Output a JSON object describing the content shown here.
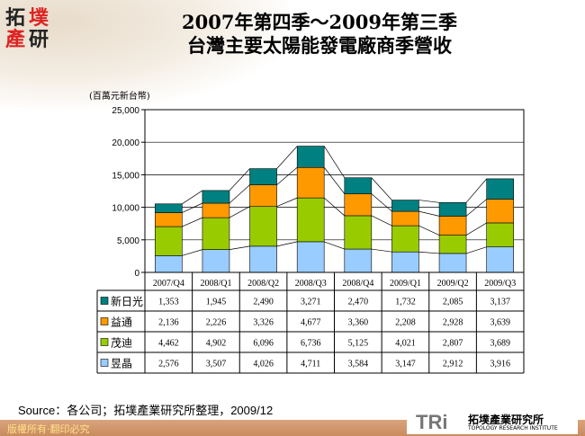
{
  "header": {
    "logo_text": "拓墣產研",
    "title_line1": "2007年第四季～2009年第三季",
    "title_line2": "台灣主要太陽能發電廠商季營收"
  },
  "chart_data": {
    "type": "bar",
    "stacked": true,
    "ylabel": "(百萬元新台幣)",
    "ylim": [
      0,
      25000
    ],
    "yticks": [
      "0",
      "5,000",
      "10,000",
      "15,000",
      "20,000",
      "25,000"
    ],
    "categories": [
      "2007/Q4",
      "2008/Q1",
      "2008/Q2",
      "2008/Q3",
      "2008/Q4",
      "2009/Q1",
      "2009/Q2",
      "2009/Q3"
    ],
    "series": [
      {
        "name": "昱晶",
        "color": "#99CCFF",
        "values": [
          2576,
          3507,
          4026,
          4711,
          3584,
          3147,
          2912,
          3916
        ],
        "labels": [
          "2,576",
          "3,507",
          "4,026",
          "4,711",
          "3,584",
          "3,147",
          "2,912",
          "3,916"
        ]
      },
      {
        "name": "茂迪",
        "color": "#99CC00",
        "values": [
          4462,
          4902,
          6096,
          6736,
          5125,
          4021,
          2807,
          3689
        ],
        "labels": [
          "4,462",
          "4,902",
          "6,096",
          "6,736",
          "5,125",
          "4,021",
          "2,807",
          "3,689"
        ]
      },
      {
        "name": "益通",
        "color": "#FF9900",
        "values": [
          2136,
          2226,
          3326,
          4677,
          3360,
          2208,
          2928,
          3639
        ],
        "labels": [
          "2,136",
          "2,226",
          "3,326",
          "4,677",
          "3,360",
          "2,208",
          "2,928",
          "3,639"
        ]
      },
      {
        "name": "新日光",
        "color": "#008080",
        "values": [
          1353,
          1945,
          2490,
          3271,
          2470,
          1732,
          2085,
          3137
        ],
        "labels": [
          "1,353",
          "1,945",
          "2,490",
          "3,271",
          "2,470",
          "1,732",
          "2,085",
          "3,137"
        ]
      }
    ],
    "series_lines": true,
    "data_table": true,
    "grid": true
  },
  "source": "Source：各公司；拓墣產業研究所整理，2009/12",
  "footer": {
    "copyright": "版權所有‧翻印必究",
    "org_cn": "拓墣產業研究所",
    "org_en": "TOPOLOGY RESEARCH INSTITUTE",
    "org_logo": "TRi"
  }
}
